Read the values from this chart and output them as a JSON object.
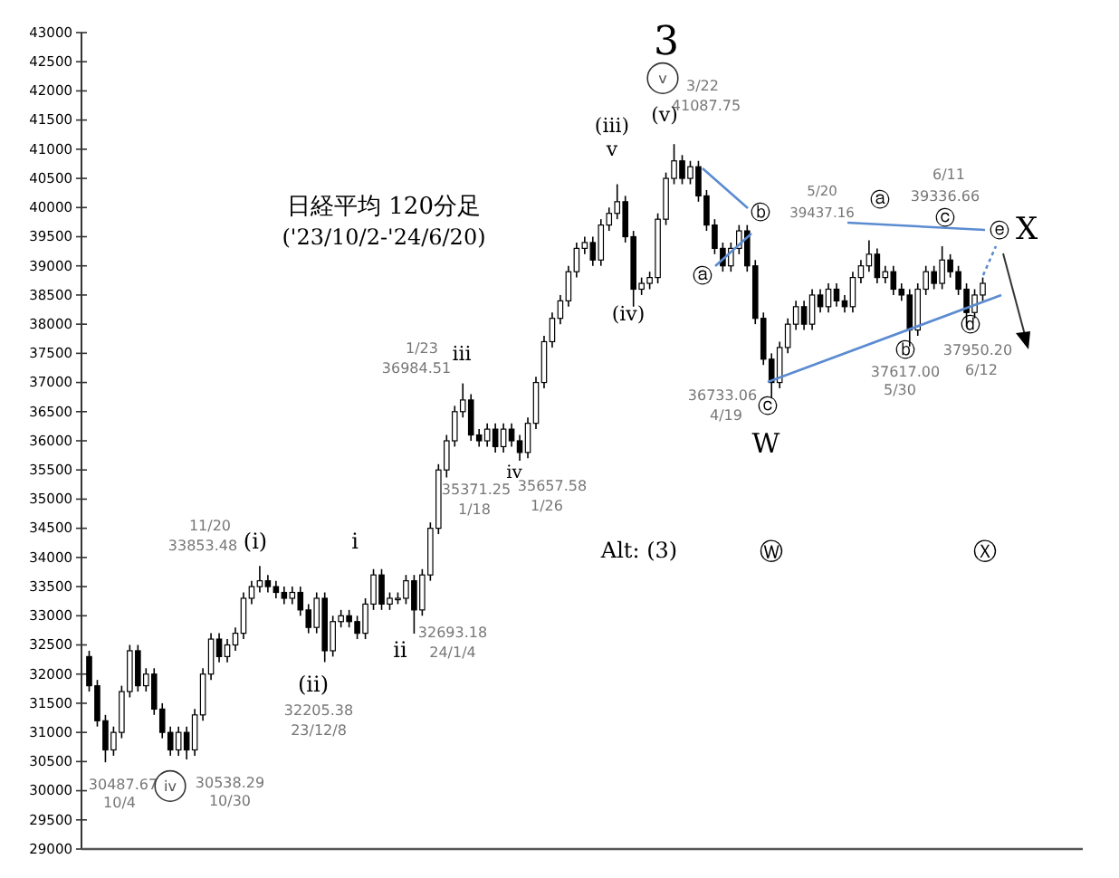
{
  "chart_data": {
    "type": "candlestick",
    "title": "日経平均 120分足",
    "subtitle": "('23/10/2-'24/6/20)",
    "color": "#000000",
    "tick_labels": "y",
    "ylim": [
      29000,
      43000
    ],
    "yticks": [
      29000,
      29500,
      30000,
      30500,
      31000,
      31500,
      32000,
      32500,
      33000,
      33500,
      34000,
      34500,
      35000,
      35500,
      36000,
      36500,
      37000,
      37500,
      38000,
      38500,
      39000,
      39500,
      40000,
      40500,
      41000,
      41500,
      42000,
      42500,
      43000
    ],
    "categories": [
      null,
      null,
      null,
      null,
      null,
      null,
      null,
      null,
      null,
      null,
      null,
      null,
      null,
      null,
      null,
      null,
      null,
      null,
      null,
      null,
      null,
      null,
      null,
      null,
      null,
      null,
      null,
      null,
      null,
      null,
      null,
      null,
      null,
      null,
      null,
      null,
      null,
      null,
      null,
      null,
      null,
      null,
      null,
      null,
      null,
      null,
      null,
      null,
      null,
      null,
      null,
      null,
      null,
      null,
      null,
      null,
      null,
      null,
      null,
      null,
      null,
      null,
      null,
      null,
      null,
      null,
      null,
      null,
      null,
      null,
      null,
      null,
      null,
      null,
      null,
      null,
      null,
      null,
      null,
      null,
      null,
      null,
      null,
      null,
      null,
      null,
      null,
      null,
      null,
      null,
      null,
      null,
      null,
      null,
      null,
      null,
      null,
      null,
      null,
      null,
      null,
      null,
      null,
      null,
      null,
      null,
      null,
      null,
      null,
      null,
      null
    ],
    "ohlc": [
      [
        32300,
        32400,
        31700,
        31800
      ],
      [
        31800,
        31900,
        31100,
        31200
      ],
      [
        31200,
        31300,
        30487.67,
        30700
      ],
      [
        30700,
        31100,
        30600,
        31000
      ],
      [
        31000,
        31800,
        30900,
        31700
      ],
      [
        31700,
        32500,
        31600,
        32400
      ],
      [
        32400,
        32500,
        31700,
        31800
      ],
      [
        31800,
        32100,
        31700,
        32000
      ],
      [
        32000,
        32100,
        31300,
        31400
      ],
      [
        31400,
        31500,
        30900,
        31000
      ],
      [
        31000,
        31100,
        30600,
        30700
      ],
      [
        30700,
        31100,
        30600,
        31000
      ],
      [
        31000,
        31100,
        30538.29,
        30700
      ],
      [
        30700,
        31400,
        30600,
        31300
      ],
      [
        31300,
        32100,
        31200,
        32000
      ],
      [
        32000,
        32700,
        31900,
        32600
      ],
      [
        32600,
        32700,
        32200,
        32300
      ],
      [
        32300,
        32600,
        32200,
        32500
      ],
      [
        32500,
        32800,
        32400,
        32700
      ],
      [
        32700,
        33400,
        32600,
        33300
      ],
      [
        33300,
        33600,
        33200,
        33500
      ],
      [
        33500,
        33853.48,
        33400,
        33600
      ],
      [
        33600,
        33700,
        33400,
        33500
      ],
      [
        33500,
        33600,
        33300,
        33400
      ],
      [
        33400,
        33500,
        33200,
        33300
      ],
      [
        33300,
        33500,
        33200,
        33400
      ],
      [
        33400,
        33500,
        33000,
        33100
      ],
      [
        33100,
        33200,
        32700,
        32800
      ],
      [
        32800,
        33400,
        32700,
        33300
      ],
      [
        33300,
        33400,
        32205.38,
        32400
      ],
      [
        32400,
        33000,
        32300,
        32900
      ],
      [
        32900,
        33100,
        32800,
        33000
      ],
      [
        33000,
        33100,
        32800,
        32900
      ],
      [
        32900,
        33000,
        32600,
        32700
      ],
      [
        32700,
        33300,
        32600,
        33200
      ],
      [
        33200,
        33800,
        33100,
        33700
      ],
      [
        33700,
        33800,
        33100,
        33200
      ],
      [
        33200,
        33400,
        33100,
        33300
      ],
      [
        33300,
        33400,
        33200,
        33300
      ],
      [
        33300,
        33700,
        33200,
        33600
      ],
      [
        33600,
        33700,
        32693.18,
        33100
      ],
      [
        33100,
        33800,
        33000,
        33700
      ],
      [
        33700,
        34600,
        33600,
        34500
      ],
      [
        34500,
        35600,
        34400,
        35500
      ],
      [
        35500,
        36100,
        35371.25,
        36000
      ],
      [
        36000,
        36600,
        35900,
        36500
      ],
      [
        36500,
        36984.51,
        36400,
        36700
      ],
      [
        36700,
        36800,
        36000,
        36100
      ],
      [
        36100,
        36200,
        35900,
        36000
      ],
      [
        36000,
        36300,
        35900,
        36200
      ],
      [
        36200,
        36300,
        35800,
        35900
      ],
      [
        35900,
        36300,
        35800,
        36200
      ],
      [
        36200,
        36300,
        35900,
        36000
      ],
      [
        36000,
        36100,
        35657.58,
        35800
      ],
      [
        35800,
        36400,
        35700,
        36300
      ],
      [
        36300,
        37100,
        36200,
        37000
      ],
      [
        37000,
        37800,
        36900,
        37700
      ],
      [
        37700,
        38200,
        37600,
        38100
      ],
      [
        38100,
        38500,
        38000,
        38400
      ],
      [
        38400,
        39000,
        38300,
        38900
      ],
      [
        38900,
        39400,
        38800,
        39300
      ],
      [
        39300,
        39500,
        39200,
        39400
      ],
      [
        39400,
        39500,
        39000,
        39100
      ],
      [
        39100,
        39800,
        39000,
        39700
      ],
      [
        39700,
        40000,
        39600,
        39900
      ],
      [
        39900,
        40400,
        39800,
        40100
      ],
      [
        40100,
        40200,
        39400,
        39500
      ],
      [
        39500,
        39600,
        38300,
        38600
      ],
      [
        38600,
        38800,
        38500,
        38700
      ],
      [
        38700,
        38900,
        38600,
        38800
      ],
      [
        38800,
        39900,
        38700,
        39800
      ],
      [
        39800,
        40600,
        39700,
        40500
      ],
      [
        40500,
        41087.75,
        40400,
        40800
      ],
      [
        40800,
        40900,
        40400,
        40500
      ],
      [
        40500,
        40800,
        40400,
        40700
      ],
      [
        40700,
        40800,
        40100,
        40200
      ],
      [
        40200,
        40300,
        39600,
        39700
      ],
      [
        39700,
        39800,
        39200,
        39300
      ],
      [
        39300,
        39400,
        38900,
        39000
      ],
      [
        39000,
        39400,
        38900,
        39300
      ],
      [
        39300,
        39700,
        39200,
        39600
      ],
      [
        39600,
        39700,
        38900,
        39000
      ],
      [
        39000,
        39100,
        38000,
        38100
      ],
      [
        38100,
        38200,
        37300,
        37400
      ],
      [
        37400,
        37500,
        36733.06,
        37000
      ],
      [
        37000,
        37700,
        36900,
        37600
      ],
      [
        37600,
        38100,
        37500,
        38000
      ],
      [
        38000,
        38400,
        37900,
        38300
      ],
      [
        38300,
        38400,
        37900,
        38000
      ],
      [
        38000,
        38600,
        37900,
        38500
      ],
      [
        38500,
        38600,
        38200,
        38300
      ],
      [
        38300,
        38700,
        38200,
        38600
      ],
      [
        38600,
        38700,
        38300,
        38400
      ],
      [
        38400,
        38500,
        38200,
        38300
      ],
      [
        38300,
        38900,
        38200,
        38800
      ],
      [
        38800,
        39100,
        38700,
        39000
      ],
      [
        39000,
        39437.16,
        38900,
        39200
      ],
      [
        39200,
        39300,
        38700,
        38800
      ],
      [
        38800,
        39000,
        38700,
        38900
      ],
      [
        38900,
        39000,
        38500,
        38600
      ],
      [
        38600,
        38700,
        38400,
        38500
      ],
      [
        38500,
        38600,
        37617,
        37900
      ],
      [
        37900,
        38700,
        37800,
        38600
      ],
      [
        38600,
        39000,
        38500,
        38900
      ],
      [
        38900,
        39000,
        38600,
        38700
      ],
      [
        38700,
        39336.66,
        38600,
        39100
      ],
      [
        39100,
        39200,
        38800,
        38900
      ],
      [
        38900,
        39000,
        38500,
        38600
      ],
      [
        38600,
        38700,
        37950.2,
        38200
      ],
      [
        38200,
        38600,
        38100,
        38500
      ],
      [
        38500,
        38800,
        38400,
        38700
      ]
    ],
    "annotations": [
      "3",
      "v",
      "3/22",
      "41087.75",
      "(v)",
      "(iii)",
      "v",
      "(iv)",
      "ⓐ",
      "ⓑ",
      "36733.06",
      "4/19",
      "ⓒ",
      "W",
      "5/20",
      "39437.16",
      "ⓐ",
      "6/11",
      "39336.66",
      "ⓒ",
      "ⓔ",
      "X",
      "ⓑ",
      "37617.00",
      "5/30",
      "ⓓ",
      "37950.20",
      "6/12",
      "Alt:  (3)",
      "Ⓦ",
      "Ⓧ",
      "1/23",
      "36984.51",
      "iii",
      "11/20",
      "33853.48",
      "(i)",
      "i",
      "35371.25",
      "1/18",
      "iv",
      "35657.58",
      "1/26",
      "32693.18",
      "24/1/4",
      "ii",
      "(ii)",
      "32205.38",
      "23/12/8",
      "30487.67",
      "10/4",
      "iv",
      "30538.29",
      "10/30"
    ]
  }
}
